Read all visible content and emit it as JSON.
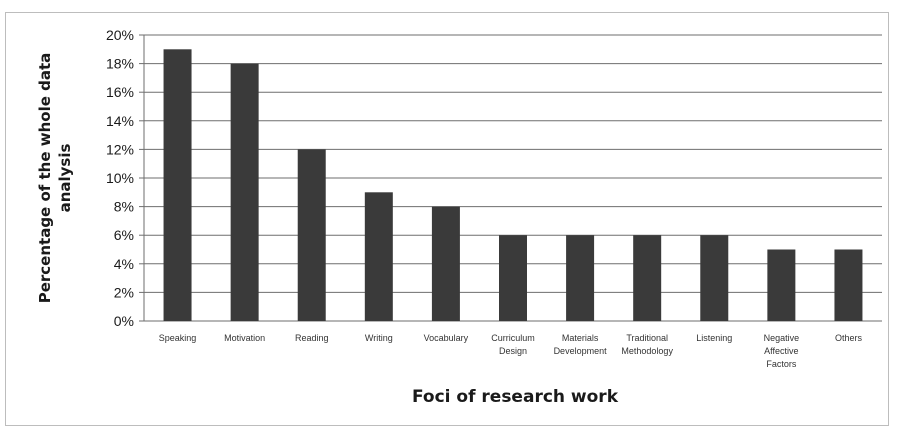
{
  "chart_data": {
    "type": "bar",
    "categories": [
      [
        "Speaking"
      ],
      [
        "Motivation"
      ],
      [
        "Reading"
      ],
      [
        "Writing"
      ],
      [
        "Vocabulary"
      ],
      [
        "Curriculum",
        "Design"
      ],
      [
        "Materials",
        "Development"
      ],
      [
        "Traditional",
        "Methodology"
      ],
      [
        "Listening"
      ],
      [
        "Negative",
        "Affective",
        "Factors"
      ],
      [
        "Others"
      ]
    ],
    "values": [
      19,
      18,
      12,
      9,
      8,
      6,
      6,
      6,
      6,
      5,
      5
    ],
    "value_unit": "%",
    "ylim": [
      0,
      20
    ],
    "y_ticks": [
      "0%",
      "2%",
      "4%",
      "6%",
      "8%",
      "10%",
      "12%",
      "14%",
      "16%",
      "18%",
      "20%"
    ],
    "ylabel_lines": [
      "Percentage of the whole data",
      "analysis"
    ],
    "xlabel": "Foci of research work",
    "grid": true,
    "bar_color": "#3a3a3a"
  }
}
